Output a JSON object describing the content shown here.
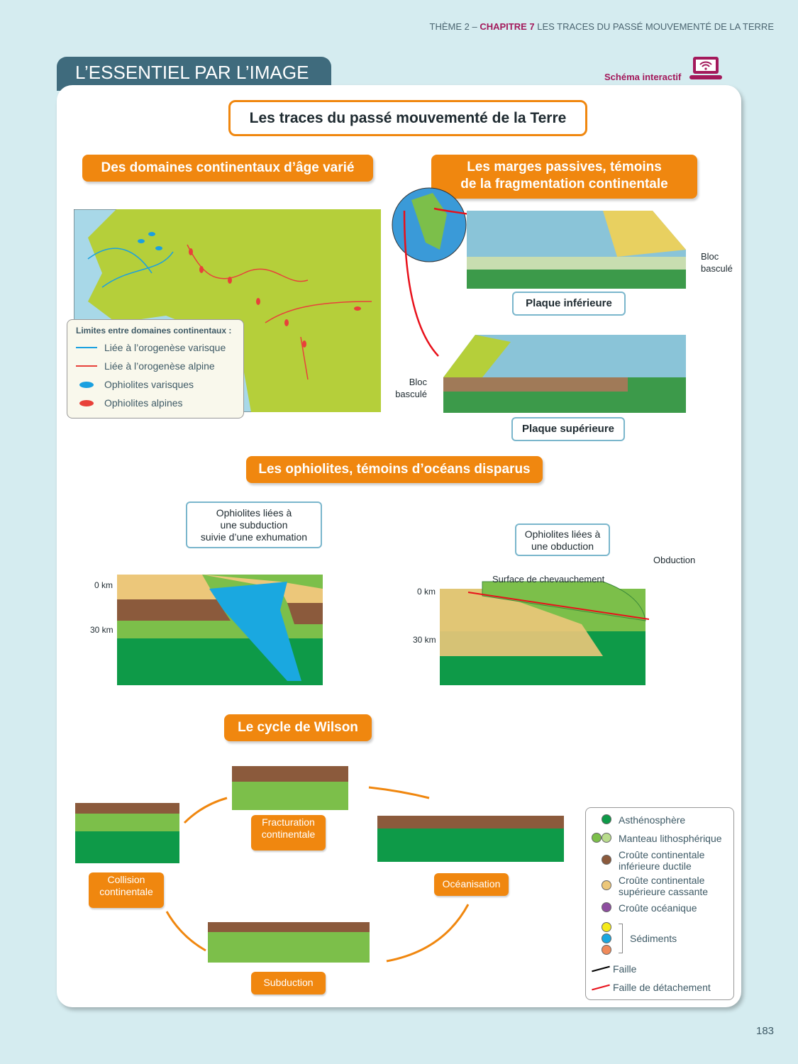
{
  "header": {
    "theme": "THÈME 2 –",
    "chapter": "CHAPITRE 7",
    "chapter_title": "LES TRACES DU PASSÉ MOUVEMENTÉ DE LA TERRE"
  },
  "tab_title": "L’ESSENTIEL PAR L’IMAGE",
  "interactive": {
    "label": "Schéma interactif",
    "icon": "laptop-wifi-icon"
  },
  "main_title": "Les traces du passé mouvementé de la Terre",
  "sections": {
    "domaines": {
      "title": "Des domaines continentaux d’âge varié",
      "legend": {
        "title": "Limites entre domaines continentaux :",
        "items": [
          {
            "label": "Liée à l’orogenèse varisque",
            "color": "#1aa0e0"
          },
          {
            "label": "Liée à l’orogenèse alpine",
            "color": "#e8413a"
          },
          {
            "label": "Ophiolites varisques",
            "color": "#1aa0e0"
          },
          {
            "label": "Ophiolites alpines",
            "color": "#e8413a"
          }
        ]
      }
    },
    "marges": {
      "title_line1": "Les marges passives, témoins",
      "title_line2": "de la fragmentation continentale",
      "plaque_inf": "Plaque inférieure",
      "plaque_sup": "Plaque supérieure",
      "bloc1": "Bloc",
      "bloc2": "basculé"
    },
    "ophiolites": {
      "title": "Les ophiolites, témoins d’océans disparus",
      "callout1": [
        "Ophiolites liées à",
        "une subduction",
        "suivie d’une exhumation"
      ],
      "callout2": [
        "Ophiolites liées à",
        "une obduction"
      ],
      "surface": "Surface de chevauchement",
      "obduction": "Obduction",
      "km0": "0 km",
      "km30": "30 km"
    },
    "wilson": {
      "title": "Le cycle de Wilson",
      "stages": {
        "fracturation": [
          "Fracturation",
          "continentale"
        ],
        "oceanisation": "Océanisation",
        "subduction": "Subduction",
        "collision": [
          "Collision",
          "continentale"
        ]
      }
    }
  },
  "legend_main": [
    {
      "label": "Asthénosphère",
      "colors": [
        "#0e9a48"
      ]
    },
    {
      "label": "Manteau lithosphérique",
      "colors": [
        "#7cbf4a",
        "#b9dc8c"
      ]
    },
    {
      "label": "Croûte continentale inférieure ductile",
      "colors": [
        "#8b5a3c"
      ]
    },
    {
      "label": "Croûte continentale supérieure cassante",
      "colors": [
        "#ecc77a"
      ]
    },
    {
      "label": "Croûte océanique",
      "colors": [
        "#8e4ea0"
      ]
    },
    {
      "label": "Sédiments",
      "colors": [
        "#f5ea1a",
        "#1aa8e0",
        "#f08a5a"
      ]
    },
    {
      "label": "Faille",
      "colors": [
        "#000000"
      ]
    },
    {
      "label": "Faille de détachement",
      "colors": [
        "#e8101a"
      ]
    }
  ],
  "page_number": "183"
}
